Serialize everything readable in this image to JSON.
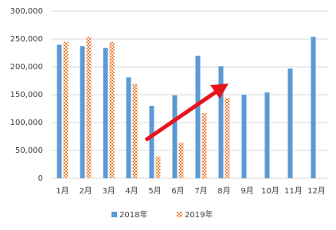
{
  "chart_data": {
    "type": "bar",
    "categories": [
      "1月",
      "2月",
      "3月",
      "4月",
      "5月",
      "6月",
      "7月",
      "8月",
      "9月",
      "10月",
      "11月",
      "12月"
    ],
    "series": [
      {
        "name": "2018年",
        "color": "#5b9bd5",
        "values": [
          240000,
          237000,
          234000,
          181000,
          130000,
          149000,
          220000,
          201000,
          150000,
          154000,
          197000,
          254000
        ]
      },
      {
        "name": "2019年",
        "color": "#ed7d31",
        "values": [
          245000,
          254000,
          245000,
          169000,
          39000,
          64000,
          117000,
          144000,
          null,
          null,
          null,
          null
        ]
      }
    ],
    "ylim": [
      0,
      300000
    ],
    "yticks": [
      0,
      {
        "value": 50000,
        "label": "50,000"
      },
      {
        "value": 100000,
        "label": "100,000"
      },
      {
        "value": 150000,
        "label": "150,000"
      },
      {
        "value": 200000,
        "label": "200,000"
      },
      {
        "value": 250000,
        "label": "250,000"
      },
      {
        "value": 300000,
        "label": "300,000"
      }
    ],
    "grid": true
  }
}
